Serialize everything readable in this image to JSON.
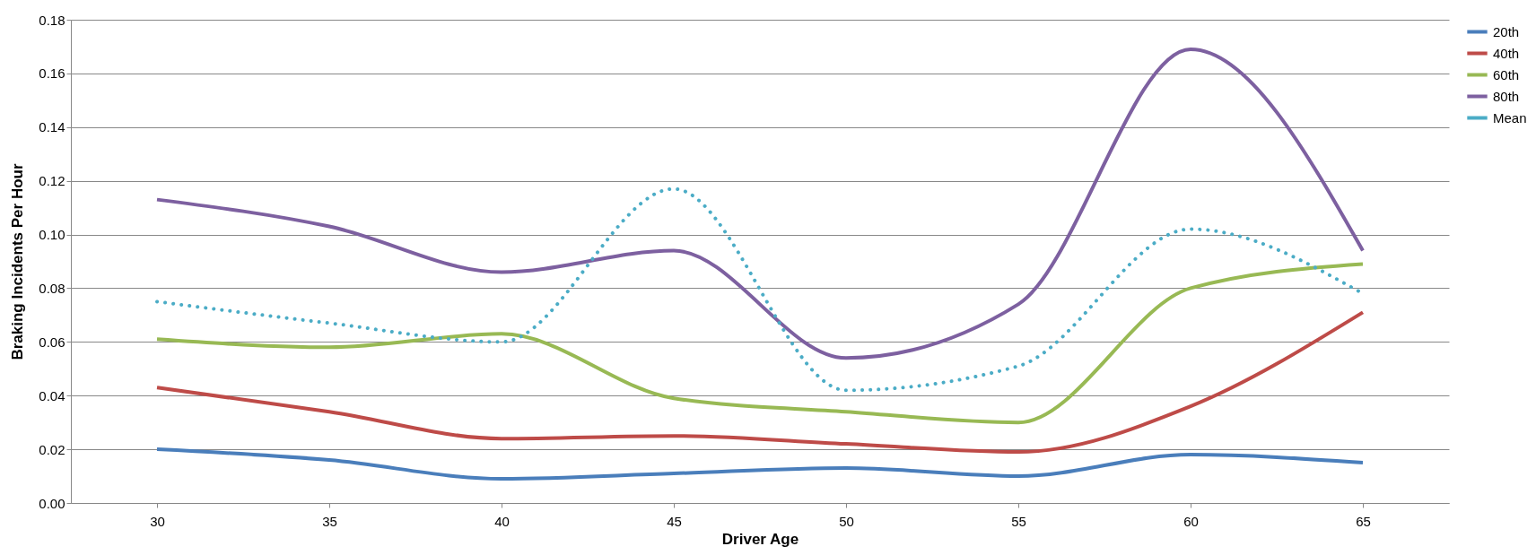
{
  "chart_data": {
    "type": "line",
    "xlabel": "Driver Age",
    "ylabel": "Braking Incidents Per Hour",
    "categories": [
      "30",
      "35",
      "40",
      "45",
      "50",
      "55",
      "60",
      "65"
    ],
    "ylim": [
      0,
      0.18
    ],
    "yticks": [
      {
        "value": 0,
        "label": "0.00"
      },
      {
        "value": 0.02,
        "label": "0.02"
      },
      {
        "value": 0.04,
        "label": "0.04"
      },
      {
        "value": 0.06,
        "label": "0.06"
      },
      {
        "value": 0.08,
        "label": "0.08"
      },
      {
        "value": 0.1,
        "label": "0.10"
      },
      {
        "value": 0.12,
        "label": "0.12"
      },
      {
        "value": 0.14,
        "label": "0.14"
      },
      {
        "value": 0.16,
        "label": "0.16"
      },
      {
        "value": 0.18,
        "label": "0.18"
      }
    ],
    "grid": "y",
    "legend": "right",
    "marker": "none",
    "series": [
      {
        "name": "20th",
        "color": "#4a7ebb",
        "line_style": "solid",
        "values": [
          0.02,
          0.016,
          0.009,
          0.011,
          0.013,
          0.01,
          0.018,
          0.015
        ]
      },
      {
        "name": "40th",
        "color": "#be4b48",
        "line_style": "solid",
        "values": [
          0.043,
          0.034,
          0.024,
          0.025,
          0.022,
          0.019,
          0.036,
          0.071
        ]
      },
      {
        "name": "60th",
        "color": "#98b954",
        "line_style": "solid",
        "values": [
          0.061,
          0.058,
          0.063,
          0.039,
          0.034,
          0.03,
          0.08,
          0.089
        ]
      },
      {
        "name": "80th",
        "color": "#7d60a0",
        "line_style": "solid",
        "values": [
          0.113,
          0.103,
          0.086,
          0.094,
          0.054,
          0.074,
          0.169,
          0.094
        ]
      },
      {
        "name": "Mean",
        "color": "#4bacc6",
        "line_style": "dotted",
        "values": [
          0.075,
          0.067,
          0.06,
          0.117,
          0.042,
          0.051,
          0.102,
          0.078
        ]
      }
    ]
  }
}
